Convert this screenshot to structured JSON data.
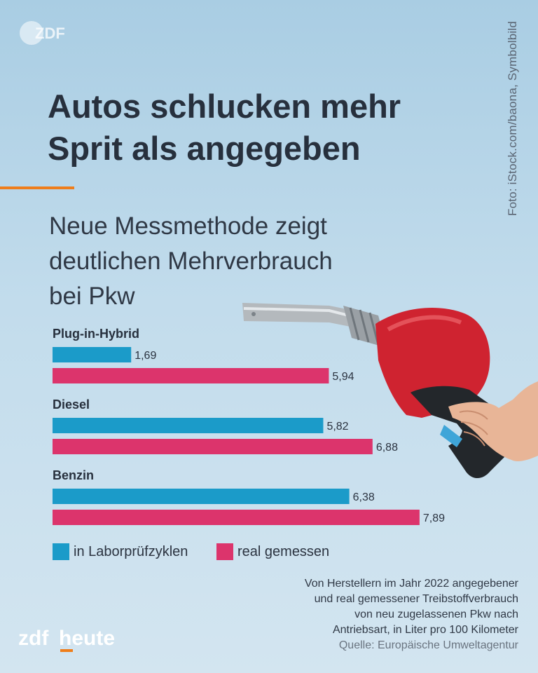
{
  "branding": {
    "logo_top_text": "ZDF",
    "logo_bottom_part1": "zdf",
    "logo_bottom_part2": "heute",
    "accent_color": "#ef7d1a"
  },
  "photo_credit": "Foto: iStock.com/baona, Symbolbild",
  "title_lines": [
    "Autos schlucken mehr",
    "Sprit als angegeben"
  ],
  "subtitle_lines": [
    "Neue Messmethode zeigt",
    "deutlichen Mehrverbrauch",
    "bei Pkw"
  ],
  "chart_data": {
    "type": "bar",
    "orientation": "horizontal",
    "categories": [
      "Plug-in-Hybrid",
      "Diesel",
      "Benzin"
    ],
    "series": [
      {
        "name": "in Laborprüfzyklen",
        "color": "#1b9bc9",
        "values": [
          1.69,
          5.82,
          6.38
        ],
        "labels": [
          "1,69",
          "5,82",
          "6,38"
        ]
      },
      {
        "name": "real gemessen",
        "color": "#dc346c",
        "values": [
          5.94,
          6.88,
          7.89
        ],
        "labels": [
          "5,94",
          "6,88",
          "7,89"
        ]
      }
    ],
    "xlim": [
      0,
      8
    ],
    "grid": false,
    "legend_position": "bottom-left"
  },
  "source": {
    "lines": [
      "Von Herstellern im Jahr 2022 angegebener",
      "und real gemessener Treibstoffverbrauch",
      "von neu zugelassenen Pkw nach",
      "Antriebsart, in Liter pro 100 Kilometer"
    ],
    "quelle": "Quelle: Europäische Umweltagentur"
  },
  "image": {
    "icon": "fuel-nozzle-in-hand-photo"
  }
}
